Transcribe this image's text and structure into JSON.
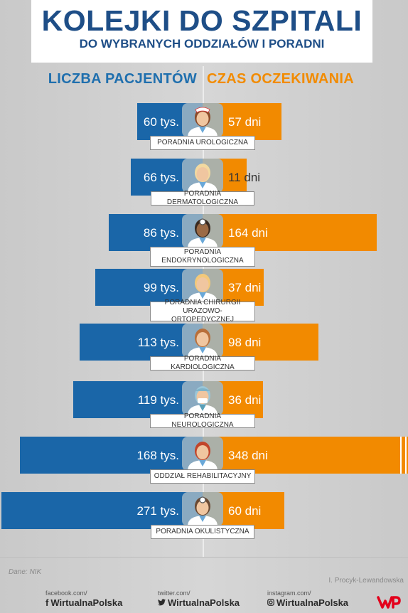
{
  "title": "KOLEJKI DO SZPITALI",
  "subtitle": "DO WYBRANYCH ODDZIAŁÓW I PORADNI",
  "header_left": "LICZBA PACJENTÓW",
  "header_right": "CZAS OCZEKIWANIA",
  "chart_data": {
    "type": "bar",
    "orientation": "horizontal-diverging",
    "categories": [
      "PORADNIA UROLOGICZNA",
      "PORADNIA DERMATOLOGICZNA",
      "PORADNIA ENDOKRYNOLOGICZNA",
      "PORADNIA CHIRURGII URAZOWO-ORTOPEDYCZNEJ",
      "PORADNIA KARDIOLOGICZNA",
      "PORADNIA NEUROLOGICZNA",
      "ODDZIAŁ REHABILITACYJNY",
      "PORADNIA OKULISTYCZNA"
    ],
    "series": [
      {
        "name": "LICZBA PACJENTÓW",
        "values": [
          60,
          66,
          86,
          99,
          113,
          119,
          168,
          271
        ],
        "labels": [
          "60 tys.",
          "66 tys.",
          "86 tys.",
          "99 tys.",
          "113 tys.",
          "119 tys.",
          "168 tys.",
          "271 tys."
        ],
        "color": "#1a66a8"
      },
      {
        "name": "CZAS OCZEKIWANIA",
        "values": [
          57,
          11,
          164,
          37,
          98,
          36,
          348,
          60
        ],
        "labels": [
          "57 dni",
          "11 dni",
          "164 dni",
          "37 dni",
          "98 dni",
          "36 dni",
          "348 dni",
          "60 dni"
        ],
        "color": "#f28a00"
      }
    ]
  },
  "icons": [
    "nurse-icon",
    "blonde-doctor-icon",
    "doctor-headlamp-icon",
    "woman-doctor-icon",
    "male-doctor-icon",
    "surgeon-mask-icon",
    "redhead-doctor-icon",
    "doctor-mirror-icon"
  ],
  "footer": {
    "source": "Dane:  NIK",
    "author": "I. Procyk-Lewandowska",
    "facebook_label": "facebook.com/",
    "facebook_handle": "WirtualnaPolska",
    "twitter_label": "twitter.com/",
    "twitter_handle": "WirtualnaPolska",
    "instagram_label": "instagram.com/",
    "instagram_handle": "WirtualnaPolska"
  },
  "colors": {
    "title": "#1e4e87",
    "patients": "#1a66a8",
    "waiting": "#f28a00",
    "logo": "#e3001b"
  }
}
